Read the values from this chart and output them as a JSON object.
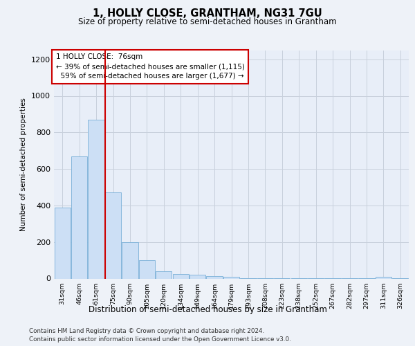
{
  "title1": "1, HOLLY CLOSE, GRANTHAM, NG31 7GU",
  "title2": "Size of property relative to semi-detached houses in Grantham",
  "xlabel": "Distribution of semi-detached houses by size in Grantham",
  "ylabel": "Number of semi-detached properties",
  "categories": [
    "31sqm",
    "46sqm",
    "61sqm",
    "75sqm",
    "90sqm",
    "105sqm",
    "120sqm",
    "134sqm",
    "149sqm",
    "164sqm",
    "179sqm",
    "193sqm",
    "208sqm",
    "223sqm",
    "238sqm",
    "252sqm",
    "267sqm",
    "282sqm",
    "297sqm",
    "311sqm",
    "326sqm"
  ],
  "values": [
    390,
    670,
    870,
    470,
    200,
    100,
    40,
    25,
    20,
    15,
    10,
    2,
    2,
    2,
    2,
    2,
    2,
    2,
    2,
    10,
    2
  ],
  "bar_color": "#ccdff5",
  "bar_edge_color": "#7ab0d8",
  "property_line_color": "#cc0000",
  "property_bar_index": 3,
  "property_sqm": "76sqm",
  "pct_smaller": 39,
  "n_smaller": 1115,
  "pct_larger": 59,
  "n_larger": 1677,
  "annotation_box_color": "#ffffff",
  "annotation_box_edge_color": "#cc0000",
  "ylim": [
    0,
    1250
  ],
  "yticks": [
    0,
    200,
    400,
    600,
    800,
    1000,
    1200
  ],
  "footer1": "Contains HM Land Registry data © Crown copyright and database right 2024.",
  "footer2": "Contains public sector information licensed under the Open Government Licence v3.0.",
  "background_color": "#eef2f8",
  "plot_background": "#e8eef8"
}
